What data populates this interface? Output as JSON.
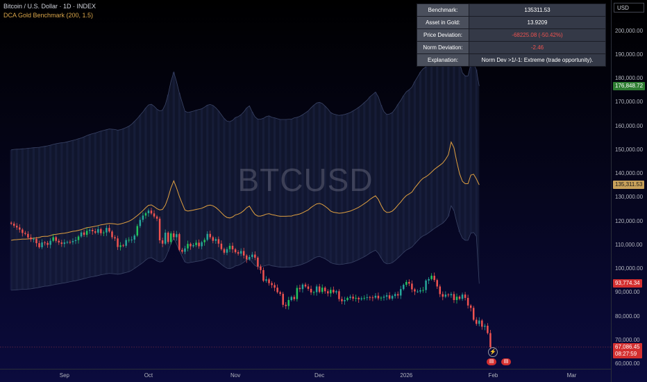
{
  "header": {
    "title": "Bitcoin / U.S. Dollar · 1D · INDEX",
    "indicator": "DCA Gold Benchmark (200, 1.5)"
  },
  "watermark": "BTCUSD",
  "currency": "USD",
  "info_table": [
    {
      "key": "Benchmark:",
      "value": "135311.53",
      "negative": false
    },
    {
      "key": "Asset in Gold:",
      "value": "13.9209",
      "negative": false
    },
    {
      "key": "Price Deviation:",
      "value": "-68225.08 (-50.42%)",
      "negative": true
    },
    {
      "key": "Norm Deviation:",
      "value": "-2.46",
      "negative": true
    },
    {
      "key": "Explanation:",
      "value": "Norm Dev >1/-1: Extreme (trade opportunity).",
      "negative": false
    }
  ],
  "price_tags": [
    {
      "label": "176,848.72",
      "value": 176848.72,
      "color": "#2e7d32"
    },
    {
      "label": "135,311.53",
      "value": 135311.53,
      "color": "#c8a15a",
      "text_color": "#1a1a1a"
    },
    {
      "label": "93,774.34",
      "value": 93774.34,
      "color": "#d32f2f"
    },
    {
      "label": "67,086.45",
      "value": 67086.45,
      "color": "#d32f2f",
      "countdown": "08:27:59"
    }
  ],
  "colors": {
    "up": "#26a69a",
    "up_bright": "#22c55e",
    "down": "#ef5350",
    "benchmark_line": "#e0a040",
    "band_fill": "#1c2440",
    "band_line": "#3a4466",
    "last_price_line": "#ef5350"
  },
  "chart_data": {
    "type": "candlestick",
    "y_axis": {
      "ticks": [
        60000,
        70000,
        80000,
        90000,
        100000,
        110000,
        120000,
        130000,
        140000,
        150000,
        160000,
        170000,
        180000,
        190000,
        200000
      ],
      "tick_labels": [
        "60,000.00",
        "70,000.00",
        "80,000.00",
        "90,000.00",
        "100,000.00",
        "110,000.00",
        "120,000.00",
        "130,000.00",
        "140,000.00",
        "150,000.00",
        "160,000.00",
        "170,000.00",
        "180,000.00",
        "190,000.00",
        "200,000.00"
      ],
      "range": [
        58000,
        213000
      ],
      "side": "right"
    },
    "x_axis": {
      "labels": [
        "Sep",
        "Oct",
        "Nov",
        "Dec",
        "2026",
        "Feb",
        "Mar"
      ],
      "label_day_index": [
        19,
        49,
        80,
        110,
        141,
        172,
        200
      ],
      "day_range": [
        -4,
        214
      ]
    },
    "price_close": [
      119000,
      118100,
      117400,
      116500,
      115100,
      114700,
      113200,
      112400,
      112600,
      110800,
      109100,
      111100,
      110900,
      110100,
      111800,
      113300,
      111800,
      111100,
      110500,
      111100,
      111300,
      111200,
      111700,
      112100,
      113600,
      115300,
      114300,
      116000,
      116400,
      115800,
      115200,
      116700,
      115000,
      115300,
      117200,
      115700,
      113300,
      112800,
      109200,
      109900,
      109700,
      112100,
      112200,
      112300,
      114000,
      118000,
      120600,
      122400,
      123400,
      124500,
      123300,
      122000,
      121100,
      112000,
      110600,
      115200,
      111300,
      114900,
      113300,
      114600,
      108000,
      107200,
      108600,
      110500,
      109500,
      110000,
      111000,
      109500,
      111200,
      112200,
      114700,
      113300,
      111800,
      112500,
      110600,
      108300,
      106800,
      108300,
      109700,
      108200,
      107000,
      106400,
      107500,
      105600,
      104000,
      105000,
      106000,
      104700,
      101000,
      99500,
      95000,
      95600,
      94000,
      93200,
      92100,
      90200,
      89500,
      84900,
      84400,
      86900,
      88200,
      87300,
      92000,
      91500,
      93400,
      92600,
      91600,
      90100,
      90200,
      92600,
      90300,
      92100,
      90600,
      89700,
      91200,
      90100,
      90600,
      87300,
      86400,
      86900,
      87800,
      88300,
      87500,
      87800,
      87200,
      87600,
      87800,
      88100,
      88000,
      87900,
      88700,
      87600,
      87900,
      88300,
      88900,
      87500,
      88600,
      89400,
      88800,
      91500,
      93300,
      94500,
      93800,
      91400,
      90500,
      90500,
      91000,
      91100,
      95100,
      95700,
      97100,
      95300,
      92600,
      89400,
      88300,
      89200,
      88900,
      89400,
      86900,
      88300,
      87400,
      89200,
      87800,
      84600,
      83600,
      78600,
      76900,
      78300,
      75700,
      76100,
      73000,
      67086
    ],
    "benchmark": [
      112000,
      112200,
      112300,
      112400,
      112500,
      112500,
      112600,
      112700,
      112900,
      113000,
      113200,
      113600,
      113700,
      113700,
      114000,
      114400,
      114500,
      114700,
      114900,
      115000,
      115200,
      115500,
      115800,
      115900,
      116200,
      116500,
      116900,
      117300,
      117500,
      117700,
      117900,
      118200,
      118500,
      118700,
      118900,
      119100,
      119000,
      118900,
      118700,
      118900,
      119200,
      119600,
      120000,
      120600,
      121500,
      122400,
      123400,
      124500,
      125700,
      126700,
      126900,
      126200,
      125300,
      124800,
      125000,
      126800,
      130000,
      134000,
      137000,
      134000,
      130500,
      127500,
      124700,
      124300,
      124500,
      124700,
      125000,
      125200,
      125500,
      126000,
      126600,
      126800,
      126500,
      125800,
      124800,
      123600,
      122400,
      121600,
      121400,
      121800,
      122700,
      123000,
      123600,
      124500,
      125700,
      126400,
      124500,
      122900,
      122200,
      122200,
      122500,
      123000,
      123200,
      122800,
      122600,
      122300,
      122100,
      122100,
      122100,
      122200,
      122200,
      122600,
      122800,
      123100,
      123600,
      124200,
      124800,
      125800,
      126600,
      127300,
      127500,
      127100,
      126300,
      125400,
      124300,
      123800,
      123600,
      123400,
      123500,
      123700,
      124000,
      124300,
      124800,
      125300,
      125900,
      126600,
      127400,
      128200,
      129200,
      130000,
      130700,
      129200,
      126700,
      124600,
      123700,
      123800,
      124300,
      125400,
      126800,
      128100,
      129600,
      130800,
      131500,
      132300,
      134000,
      135500,
      137000,
      138100,
      138700,
      139600,
      140700,
      141800,
      142700,
      143600,
      144500,
      146000,
      148000,
      153300,
      150900,
      145000,
      140000,
      136800,
      135800,
      135800,
      139400,
      139800,
      137800,
      135311
    ],
    "band_upper": [
      150000,
      150200,
      150300,
      150300,
      150500,
      150500,
      150700,
      150800,
      150900,
      151000,
      151100,
      151300,
      151500,
      151700,
      152000,
      152300,
      152600,
      152800,
      153000,
      153100,
      153400,
      153700,
      154000,
      154300,
      154700,
      155000,
      155500,
      156000,
      156500,
      156800,
      157100,
      157500,
      157900,
      158200,
      158500,
      158800,
      158700,
      158600,
      158300,
      158500,
      158900,
      159400,
      160000,
      160800,
      162000,
      163200,
      164600,
      166000,
      167600,
      168900,
      169200,
      168300,
      167100,
      166400,
      166700,
      169100,
      173300,
      178700,
      182700,
      178700,
      174000,
      170000,
      166300,
      165700,
      166000,
      166300,
      166700,
      167000,
      167300,
      168000,
      168800,
      169100,
      168700,
      167700,
      166400,
      164800,
      163200,
      162100,
      161900,
      162400,
      163600,
      164000,
      164800,
      166000,
      167600,
      168500,
      166000,
      163900,
      162900,
      162900,
      163300,
      164000,
      164300,
      163700,
      163500,
      163100,
      162800,
      162800,
      162800,
      162900,
      162900,
      163500,
      163700,
      164100,
      164800,
      165600,
      166400,
      167700,
      168800,
      169700,
      170000,
      169500,
      168400,
      167200,
      165700,
      165100,
      164800,
      164500,
      164700,
      164900,
      165300,
      165700,
      166400,
      167100,
      167900,
      168800,
      169900,
      170900,
      172300,
      173300,
      174300,
      172300,
      168900,
      166100,
      164900,
      165100,
      165700,
      167200,
      169100,
      170800,
      172800,
      174400,
      175300,
      176400,
      178700,
      180700,
      182700,
      184100,
      184900,
      186100,
      187600,
      189100,
      190300,
      191500,
      192700,
      194700,
      197300,
      204400,
      201200,
      193300,
      186700,
      182400,
      181100,
      181100,
      185900,
      186400,
      183700,
      176848
    ],
    "band_lower": [
      91000,
      91100,
      91200,
      91300,
      91400,
      91400,
      91500,
      91600,
      91800,
      92000,
      92200,
      92500,
      92700,
      92800,
      93000,
      93300,
      93500,
      93700,
      93900,
      94100,
      94300,
      94600,
      94800,
      95000,
      95300,
      95600,
      95900,
      96200,
      96500,
      96700,
      96900,
      97200,
      97500,
      97700,
      97900,
      98100,
      98000,
      97900,
      97700,
      97900,
      98200,
      98500,
      98800,
      99400,
      100200,
      101000,
      101800,
      102700,
      103700,
      104500,
      104700,
      104100,
      103300,
      102900,
      103100,
      104600,
      107300,
      110500,
      113000,
      110500,
      107700,
      105200,
      102900,
      102500,
      102700,
      102900,
      103100,
      103300,
      103500,
      103900,
      104400,
      104600,
      104300,
      103700,
      102900,
      101900,
      101000,
      100300,
      100100,
      100500,
      101200,
      101500,
      102000,
      102800,
      103700,
      104300,
      102700,
      101400,
      100800,
      100800,
      101100,
      101500,
      101700,
      101300,
      101100,
      100900,
      100700,
      100700,
      100700,
      100800,
      100800,
      101100,
      101300,
      101600,
      102000,
      102500,
      103000,
      103700,
      104400,
      105000,
      105200,
      104800,
      104200,
      103500,
      102600,
      102200,
      102000,
      101800,
      101900,
      102100,
      102300,
      102500,
      102900,
      103400,
      103900,
      104500,
      105100,
      105800,
      106600,
      107300,
      107800,
      106600,
      104600,
      102800,
      102100,
      102200,
      102600,
      103500,
      104600,
      105700,
      106900,
      107900,
      108500,
      109200,
      110500,
      111800,
      113000,
      113900,
      114400,
      115200,
      116100,
      117000,
      117700,
      118500,
      119200,
      120400,
      122100,
      126500,
      124500,
      119600,
      115500,
      112900,
      112000,
      112000,
      115000,
      115300,
      113700,
      93774
    ]
  }
}
